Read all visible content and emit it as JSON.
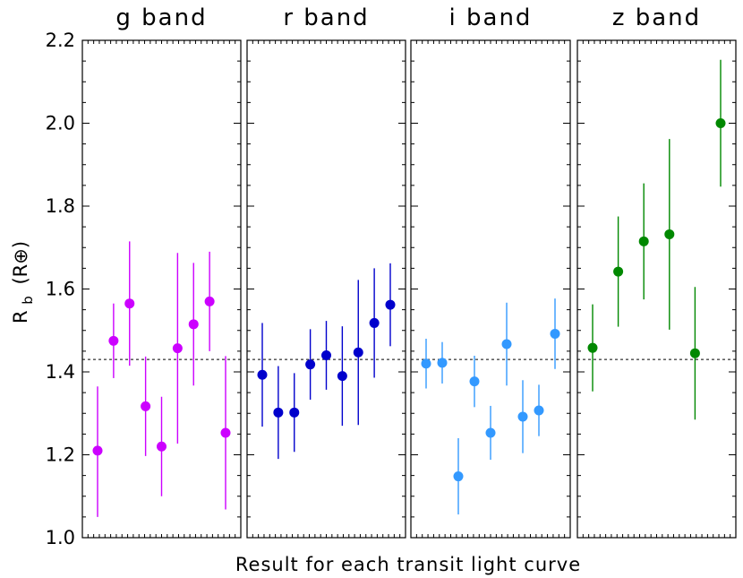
{
  "chart_data": {
    "type": "scatter",
    "xlabel": "Result for each transit light curve",
    "ylabel": "R_b (R⊕)",
    "ylabel_main": "R",
    "ylabel_sub": "b",
    "ylabel_unit": "(R⊕)",
    "ylim": [
      1.0,
      2.2
    ],
    "yticks": [
      "1.0",
      "1.2",
      "1.4",
      "1.6",
      "1.8",
      "2.0",
      "2.2"
    ],
    "reference_line": 1.43,
    "grid": false,
    "panels": [
      {
        "title": "g band",
        "color": "#cc00ff",
        "points": [
          {
            "x": 1,
            "y": 1.21,
            "err_low": 0.16,
            "err_high": 0.155
          },
          {
            "x": 2,
            "y": 1.475,
            "err_low": 0.09,
            "err_high": 0.09
          },
          {
            "x": 3,
            "y": 1.565,
            "err_low": 0.15,
            "err_high": 0.15
          },
          {
            "x": 4,
            "y": 1.317,
            "err_low": 0.12,
            "err_high": 0.12
          },
          {
            "x": 5,
            "y": 1.22,
            "err_low": 0.12,
            "err_high": 0.12
          },
          {
            "x": 6,
            "y": 1.457,
            "err_low": 0.23,
            "err_high": 0.23
          },
          {
            "x": 7,
            "y": 1.515,
            "err_low": 0.148,
            "err_high": 0.148
          },
          {
            "x": 8,
            "y": 1.57,
            "err_low": 0.12,
            "err_high": 0.12
          },
          {
            "x": 9,
            "y": 1.253,
            "err_low": 0.185,
            "err_high": 0.185
          }
        ]
      },
      {
        "title": "r band",
        "color": "#0000cc",
        "points": [
          {
            "x": 1,
            "y": 1.393,
            "err_low": 0.125,
            "err_high": 0.125
          },
          {
            "x": 2,
            "y": 1.302,
            "err_low": 0.112,
            "err_high": 0.112
          },
          {
            "x": 3,
            "y": 1.302,
            "err_low": 0.095,
            "err_high": 0.095
          },
          {
            "x": 4,
            "y": 1.418,
            "err_low": 0.085,
            "err_high": 0.085
          },
          {
            "x": 5,
            "y": 1.44,
            "err_low": 0.083,
            "err_high": 0.083
          },
          {
            "x": 6,
            "y": 1.39,
            "err_low": 0.12,
            "err_high": 0.12
          },
          {
            "x": 7,
            "y": 1.447,
            "err_low": 0.175,
            "err_high": 0.175
          },
          {
            "x": 8,
            "y": 1.518,
            "err_low": 0.132,
            "err_high": 0.132
          },
          {
            "x": 9,
            "y": 1.562,
            "err_low": 0.1,
            "err_high": 0.1
          }
        ]
      },
      {
        "title": "i band",
        "color": "#3399ff",
        "points": [
          {
            "x": 1,
            "y": 1.42,
            "err_low": 0.06,
            "err_high": 0.06
          },
          {
            "x": 2,
            "y": 1.422,
            "err_low": 0.05,
            "err_high": 0.05
          },
          {
            "x": 3,
            "y": 1.148,
            "err_low": 0.092,
            "err_high": 0.092
          },
          {
            "x": 4,
            "y": 1.377,
            "err_low": 0.062,
            "err_high": 0.062
          },
          {
            "x": 5,
            "y": 1.253,
            "err_low": 0.065,
            "err_high": 0.065
          },
          {
            "x": 6,
            "y": 1.467,
            "err_low": 0.1,
            "err_high": 0.1
          },
          {
            "x": 7,
            "y": 1.292,
            "err_low": 0.088,
            "err_high": 0.088
          },
          {
            "x": 8,
            "y": 1.307,
            "err_low": 0.062,
            "err_high": 0.062
          },
          {
            "x": 9,
            "y": 1.492,
            "err_low": 0.085,
            "err_high": 0.085
          }
        ]
      },
      {
        "title": "z band",
        "color": "#008800",
        "points": [
          {
            "x": 1,
            "y": 1.458,
            "err_low": 0.105,
            "err_high": 0.105
          },
          {
            "x": 2,
            "y": 1.642,
            "err_low": 0.133,
            "err_high": 0.133
          },
          {
            "x": 3,
            "y": 1.715,
            "err_low": 0.14,
            "err_high": 0.14
          },
          {
            "x": 4,
            "y": 1.732,
            "err_low": 0.23,
            "err_high": 0.23
          },
          {
            "x": 5,
            "y": 1.445,
            "err_low": 0.16,
            "err_high": 0.16
          },
          {
            "x": 6,
            "y": 2.0,
            "err_low": 0.153,
            "err_high": 0.153
          }
        ]
      }
    ]
  }
}
